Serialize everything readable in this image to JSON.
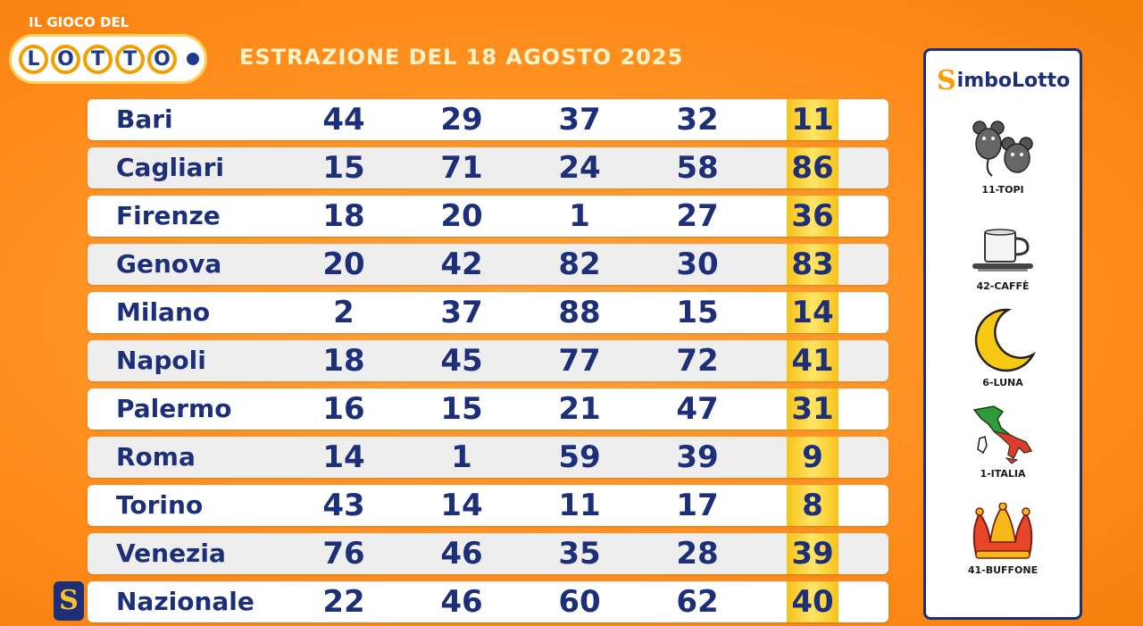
{
  "logo": {
    "top_text": "IL GIOCO DEL",
    "letters": [
      "L",
      "O",
      "T",
      "T",
      "O"
    ]
  },
  "header": {
    "title": "ESTRAZIONE DEL 18 AGOSTO 2025"
  },
  "draws": [
    {
      "city": "Bari",
      "numbers": [
        "44",
        "29",
        "37",
        "32",
        "11"
      ]
    },
    {
      "city": "Cagliari",
      "numbers": [
        "15",
        "71",
        "24",
        "58",
        "86"
      ]
    },
    {
      "city": "Firenze",
      "numbers": [
        "18",
        "20",
        "1",
        "27",
        "36"
      ]
    },
    {
      "city": "Genova",
      "numbers": [
        "20",
        "42",
        "82",
        "30",
        "83"
      ]
    },
    {
      "city": "Milano",
      "numbers": [
        "2",
        "37",
        "88",
        "15",
        "14"
      ]
    },
    {
      "city": "Napoli",
      "numbers": [
        "18",
        "45",
        "77",
        "72",
        "41"
      ]
    },
    {
      "city": "Palermo",
      "numbers": [
        "16",
        "15",
        "21",
        "47",
        "31"
      ]
    },
    {
      "city": "Roma",
      "numbers": [
        "14",
        "1",
        "59",
        "39",
        "9"
      ]
    },
    {
      "city": "Torino",
      "numbers": [
        "43",
        "14",
        "11",
        "17",
        "8"
      ]
    },
    {
      "city": "Venezia",
      "numbers": [
        "76",
        "46",
        "35",
        "28",
        "39"
      ]
    },
    {
      "city": "Nazionale",
      "numbers": [
        "22",
        "46",
        "60",
        "62",
        "40"
      ]
    }
  ],
  "nazionale_badge": "S",
  "simbolotto": {
    "title_s": "S",
    "title_rest": "imboLotto",
    "symbols": [
      {
        "label": "11-TOPI",
        "icon": "mice-icon"
      },
      {
        "label": "42-CAFFÈ",
        "icon": "coffee-cup-icon"
      },
      {
        "label": "6-LUNA",
        "icon": "crescent-moon-icon"
      },
      {
        "label": "1-ITALIA",
        "icon": "italy-map-icon"
      },
      {
        "label": "41-BUFFONE",
        "icon": "jester-hat-icon"
      }
    ]
  },
  "colors": {
    "background": "#ff9020",
    "text_navy": "#1c2f78",
    "highlight": "#f6c21a",
    "panel_border": "#1c2f78"
  }
}
